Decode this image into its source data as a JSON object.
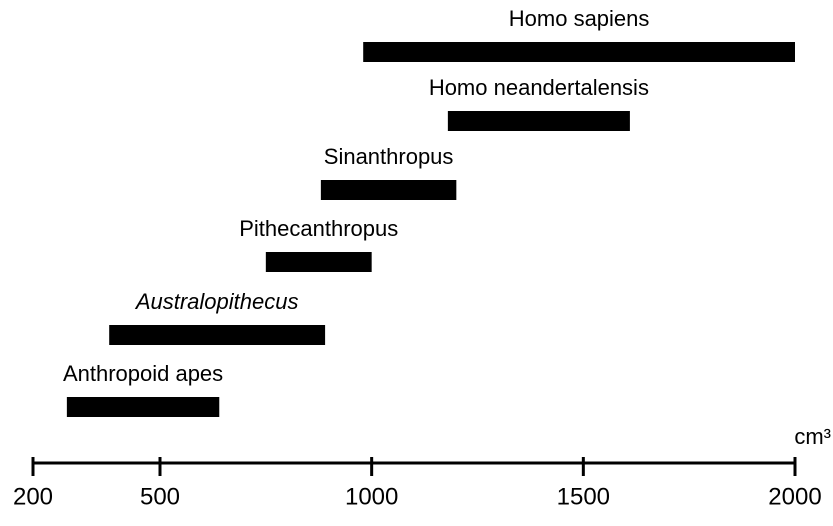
{
  "chart_data": {
    "type": "range-bar",
    "categories": [
      "Homo sapiens",
      "Homo neandertalensis",
      "Sinanthropus",
      "Pithecanthropus",
      "Australopithecus",
      "Anthropoid apes"
    ],
    "starts": [
      980,
      1180,
      880,
      750,
      380,
      280
    ],
    "ends": [
      2000,
      1610,
      1200,
      1000,
      890,
      640
    ],
    "color": "#000000",
    "xlim": [
      200,
      2000
    ],
    "xticks": [
      200,
      500,
      1000,
      1500,
      2000
    ],
    "x_unit": "cm³"
  }
}
